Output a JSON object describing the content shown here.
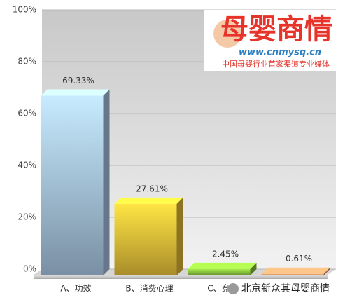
{
  "chart_data": {
    "type": "bar3d",
    "categories": [
      "A、功效",
      "B、消费心理",
      "C、竞争",
      null
    ],
    "values": [
      69.33,
      27.61,
      2.45,
      0.61
    ],
    "value_labels": [
      "69.33%",
      "27.61%",
      "2.45%",
      "0.61%"
    ],
    "colors": [
      "#a9c7e3",
      "#e9c23a",
      "#8cc63f",
      "#f29a6a"
    ],
    "ylim": [
      0,
      100
    ],
    "yticks": [
      {
        "value": 0,
        "label": "0%"
      },
      {
        "value": 20,
        "label": "20%"
      },
      {
        "value": 40,
        "label": "40%"
      },
      {
        "value": 60,
        "label": "60%"
      },
      {
        "value": 80,
        "label": "80%"
      },
      {
        "value": 100,
        "label": "100%"
      }
    ],
    "grid": true
  },
  "logo": {
    "name": "母婴商情",
    "url": "www.cnmysq.cn",
    "slogan": "中国母婴行业首家渠道专业媒体"
  },
  "watermark": "北京新众其母婴商情"
}
